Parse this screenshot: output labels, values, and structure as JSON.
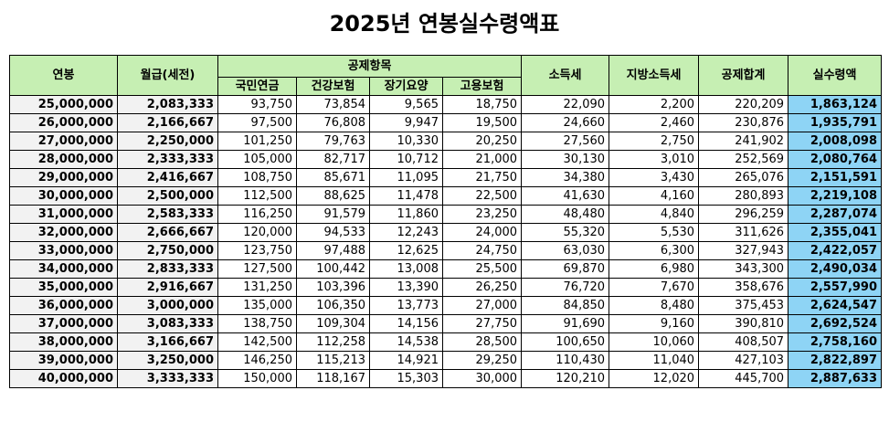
{
  "title": "2025년 연봉실수령액표",
  "headers": {
    "annual": "연봉",
    "monthly": "월급(세전)",
    "deduction_group": "공제항목",
    "pension": "국민연금",
    "health": "건강보험",
    "longterm": "장기요양",
    "employment": "고용보험",
    "income_tax": "소득세",
    "local_tax": "지방소득세",
    "total_deduction": "공제합계",
    "net": "실수령액"
  },
  "rows": [
    {
      "annual": "25,000,000",
      "monthly": "2,083,333",
      "pension": "93,750",
      "health": "73,854",
      "longterm": "9,565",
      "employment": "18,750",
      "income_tax": "22,090",
      "local_tax": "2,200",
      "total": "220,209",
      "net": "1,863,124"
    },
    {
      "annual": "26,000,000",
      "monthly": "2,166,667",
      "pension": "97,500",
      "health": "76,808",
      "longterm": "9,947",
      "employment": "19,500",
      "income_tax": "24,660",
      "local_tax": "2,460",
      "total": "230,876",
      "net": "1,935,791"
    },
    {
      "annual": "27,000,000",
      "monthly": "2,250,000",
      "pension": "101,250",
      "health": "79,763",
      "longterm": "10,330",
      "employment": "20,250",
      "income_tax": "27,560",
      "local_tax": "2,750",
      "total": "241,902",
      "net": "2,008,098"
    },
    {
      "annual": "28,000,000",
      "monthly": "2,333,333",
      "pension": "105,000",
      "health": "82,717",
      "longterm": "10,712",
      "employment": "21,000",
      "income_tax": "30,130",
      "local_tax": "3,010",
      "total": "252,569",
      "net": "2,080,764"
    },
    {
      "annual": "29,000,000",
      "monthly": "2,416,667",
      "pension": "108,750",
      "health": "85,671",
      "longterm": "11,095",
      "employment": "21,750",
      "income_tax": "34,380",
      "local_tax": "3,430",
      "total": "265,076",
      "net": "2,151,591"
    },
    {
      "annual": "30,000,000",
      "monthly": "2,500,000",
      "pension": "112,500",
      "health": "88,625",
      "longterm": "11,478",
      "employment": "22,500",
      "income_tax": "41,630",
      "local_tax": "4,160",
      "total": "280,893",
      "net": "2,219,108"
    },
    {
      "annual": "31,000,000",
      "monthly": "2,583,333",
      "pension": "116,250",
      "health": "91,579",
      "longterm": "11,860",
      "employment": "23,250",
      "income_tax": "48,480",
      "local_tax": "4,840",
      "total": "296,259",
      "net": "2,287,074"
    },
    {
      "annual": "32,000,000",
      "monthly": "2,666,667",
      "pension": "120,000",
      "health": "94,533",
      "longterm": "12,243",
      "employment": "24,000",
      "income_tax": "55,320",
      "local_tax": "5,530",
      "total": "311,626",
      "net": "2,355,041"
    },
    {
      "annual": "33,000,000",
      "monthly": "2,750,000",
      "pension": "123,750",
      "health": "97,488",
      "longterm": "12,625",
      "employment": "24,750",
      "income_tax": "63,030",
      "local_tax": "6,300",
      "total": "327,943",
      "net": "2,422,057"
    },
    {
      "annual": "34,000,000",
      "monthly": "2,833,333",
      "pension": "127,500",
      "health": "100,442",
      "longterm": "13,008",
      "employment": "25,500",
      "income_tax": "69,870",
      "local_tax": "6,980",
      "total": "343,300",
      "net": "2,490,034"
    },
    {
      "annual": "35,000,000",
      "monthly": "2,916,667",
      "pension": "131,250",
      "health": "103,396",
      "longterm": "13,390",
      "employment": "26,250",
      "income_tax": "76,720",
      "local_tax": "7,670",
      "total": "358,676",
      "net": "2,557,990"
    },
    {
      "annual": "36,000,000",
      "monthly": "3,000,000",
      "pension": "135,000",
      "health": "106,350",
      "longterm": "13,773",
      "employment": "27,000",
      "income_tax": "84,850",
      "local_tax": "8,480",
      "total": "375,453",
      "net": "2,624,547"
    },
    {
      "annual": "37,000,000",
      "monthly": "3,083,333",
      "pension": "138,750",
      "health": "109,304",
      "longterm": "14,156",
      "employment": "27,750",
      "income_tax": "91,690",
      "local_tax": "9,160",
      "total": "390,810",
      "net": "2,692,524"
    },
    {
      "annual": "38,000,000",
      "monthly": "3,166,667",
      "pension": "142,500",
      "health": "112,258",
      "longterm": "14,538",
      "employment": "28,500",
      "income_tax": "100,650",
      "local_tax": "10,060",
      "total": "408,507",
      "net": "2,758,160"
    },
    {
      "annual": "39,000,000",
      "monthly": "3,250,000",
      "pension": "146,250",
      "health": "115,213",
      "longterm": "14,921",
      "employment": "29,250",
      "income_tax": "110,430",
      "local_tax": "11,040",
      "total": "427,103",
      "net": "2,822,897"
    },
    {
      "annual": "40,000,000",
      "monthly": "3,333,333",
      "pension": "150,000",
      "health": "118,167",
      "longterm": "15,303",
      "employment": "30,000",
      "income_tax": "120,210",
      "local_tax": "12,020",
      "total": "445,700",
      "net": "2,887,633"
    }
  ],
  "colors": {
    "header_bg": "#c6efb3",
    "first_cols_bg": "#f2f2f2",
    "net_bg": "#8ed4f5"
  }
}
